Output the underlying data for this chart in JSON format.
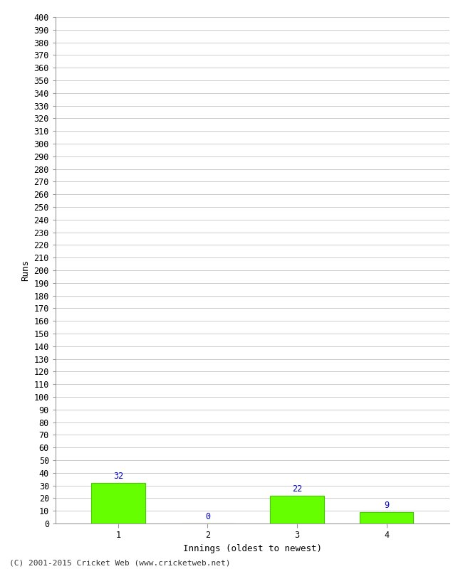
{
  "categories": [
    1,
    2,
    3,
    4
  ],
  "values": [
    32,
    0,
    22,
    9
  ],
  "bar_color": "#66ff00",
  "bar_edge_color": "#44cc00",
  "value_color": "#0000cc",
  "xlabel": "Innings (oldest to newest)",
  "ylabel": "Runs",
  "ylim": [
    0,
    400
  ],
  "ytick_step": 10,
  "background_color": "#ffffff",
  "grid_color": "#cccccc",
  "footer": "(C) 2001-2015 Cricket Web (www.cricketweb.net)",
  "tick_fontsize": 8.5,
  "label_fontsize": 9,
  "footer_fontsize": 8
}
